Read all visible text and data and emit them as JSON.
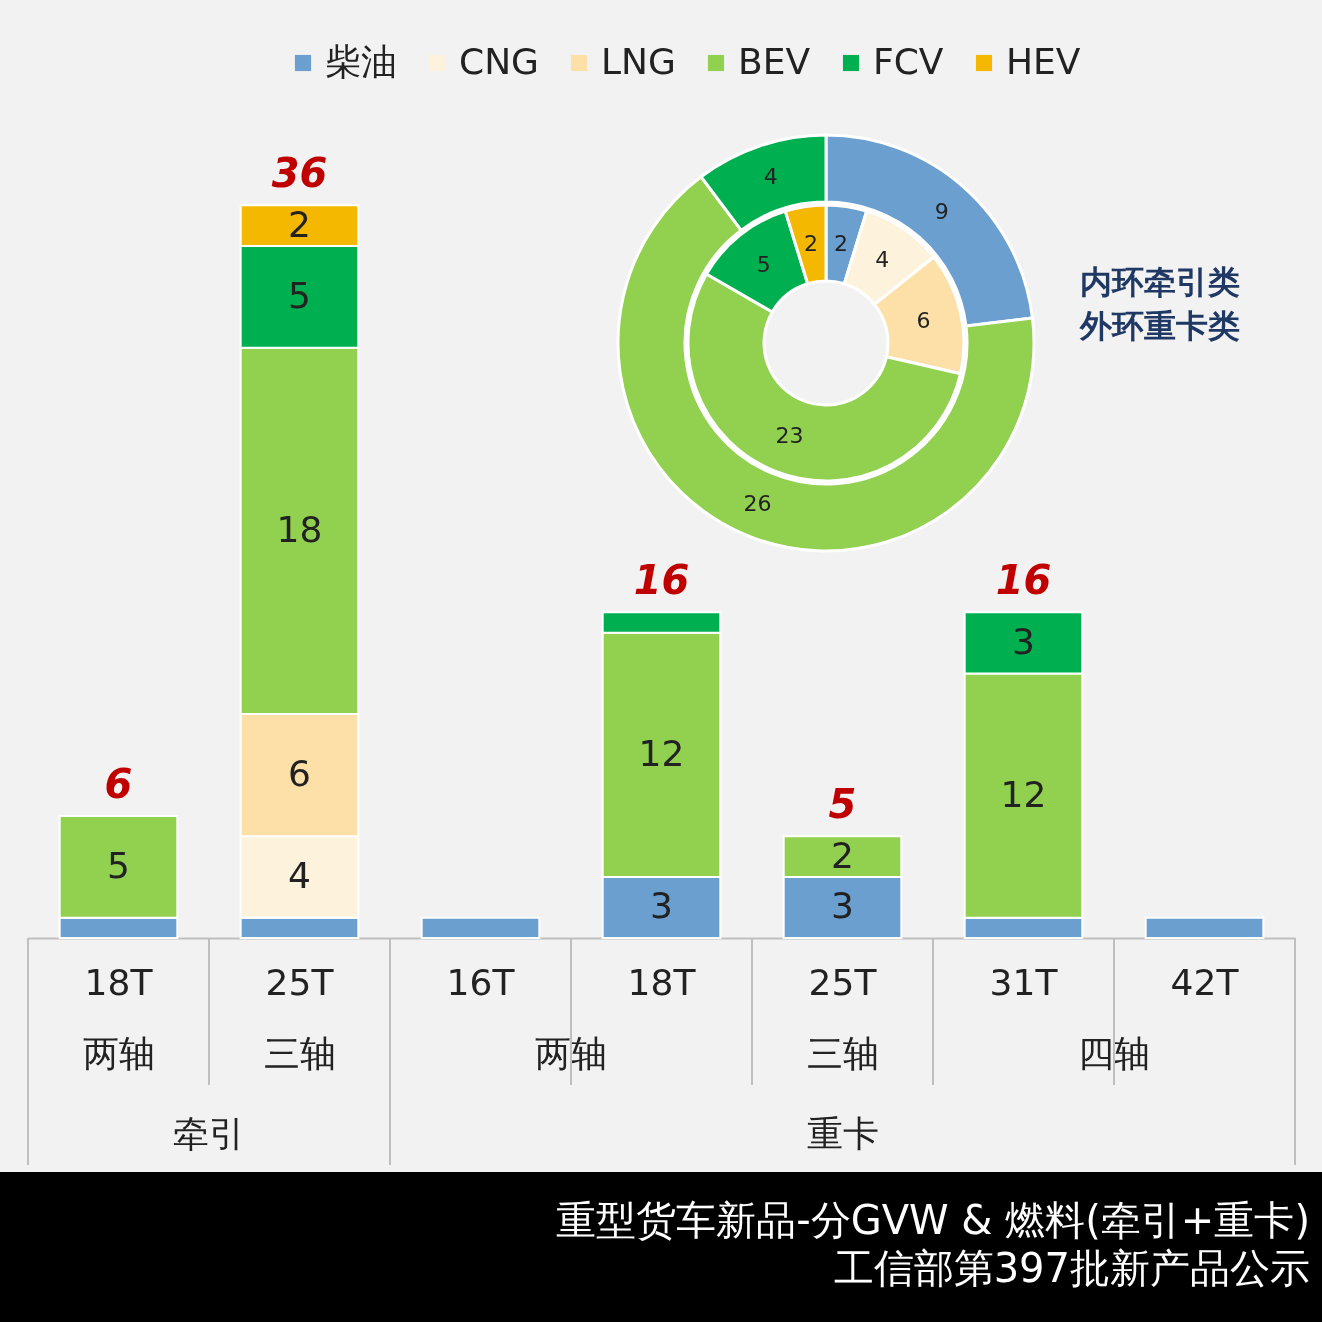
{
  "chart_data": [
    {
      "type": "bar",
      "stacked": true,
      "title": "重型货车新品-分GVW & 燃料(牵引+重卡)",
      "subtitle": "工信部第397批新产品公示",
      "categories": [
        "18T",
        "25T",
        "16T",
        "18T",
        "25T",
        "31T",
        "42T"
      ],
      "series": [
        {
          "name": "柴油",
          "color": "#6a9fcf",
          "values": [
            1,
            1,
            1,
            3,
            3,
            1,
            1
          ],
          "value_labels": [
            null,
            null,
            null,
            "3",
            "3",
            null,
            null
          ]
        },
        {
          "name": "CNG",
          "color": "#fdf3dc",
          "values": [
            null,
            4,
            null,
            null,
            null,
            null,
            null
          ],
          "value_labels": [
            null,
            "4",
            null,
            null,
            null,
            null,
            null
          ]
        },
        {
          "name": "LNG",
          "color": "#fde0a8",
          "values": [
            null,
            6,
            null,
            null,
            null,
            null,
            null
          ],
          "value_labels": [
            null,
            "6",
            null,
            null,
            null,
            null,
            null
          ]
        },
        {
          "name": "BEV",
          "color": "#92d050",
          "values": [
            5,
            18,
            null,
            12,
            2,
            12,
            null
          ],
          "value_labels": [
            "5",
            "18",
            null,
            "12",
            "2",
            "12",
            null
          ]
        },
        {
          "name": "FCV",
          "color": "#00b050",
          "values": [
            null,
            5,
            null,
            1,
            null,
            3,
            null
          ],
          "value_labels": [
            null,
            "5",
            null,
            null,
            null,
            "3",
            null
          ]
        },
        {
          "name": "HEV",
          "color": "#f5b800",
          "values": [
            null,
            2,
            null,
            null,
            null,
            null,
            null
          ],
          "value_labels": [
            null,
            "2",
            null,
            null,
            null,
            null,
            null
          ]
        }
      ],
      "totals": [
        "6",
        "36",
        null,
        "16",
        "5",
        "16",
        null
      ],
      "annotations": [
        "两轴",
        "三轴",
        "两轴",
        "三轴",
        "四轴",
        "牵引",
        "重卡"
      ],
      "legend": "top",
      "grid": false
    },
    {
      "type": "donut",
      "data_labels": true,
      "categories": [
        null,
        null,
        null,
        null,
        null,
        null
      ],
      "colors": [
        "#6a9fcf",
        "#fdf3dc",
        "#fde0a8",
        "#92d050",
        "#00b050",
        "#f5b800"
      ],
      "series": [
        {
          "values": [
            2,
            4,
            6,
            23,
            5,
            2
          ]
        },
        {
          "values": [
            9,
            0,
            0,
            26,
            4,
            0
          ]
        }
      ],
      "annotations": [
        "内环牵引类",
        "外环重卡类"
      ]
    }
  ]
}
